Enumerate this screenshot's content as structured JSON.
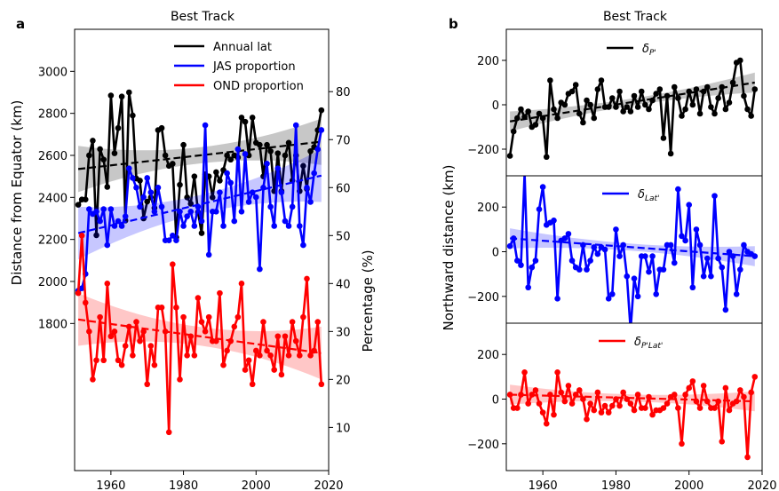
{
  "panel_a": {
    "letter": "a",
    "title": "Best Track",
    "ylabel_left": "Distance from Equator (km)",
    "ylabel_right": "Percentage (%)",
    "left_ticks": [
      "1800",
      "2000",
      "2200",
      "2400",
      "2600",
      "2800",
      "3000"
    ],
    "right_ticks": [
      "10",
      "20",
      "30",
      "40",
      "50",
      "60",
      "70",
      "80"
    ],
    "x_ticks": [
      "1960",
      "1980",
      "2000",
      "2020"
    ]
  },
  "panel_b": {
    "letter": "b",
    "title": "Best Track",
    "ylabel": "Northward distance (km)",
    "x_ticks": [
      "1960",
      "1980",
      "2000",
      "2020"
    ],
    "sub_labels": [
      "δP'",
      "δLat'",
      "δP'Lat'"
    ],
    "sub_labels_html": [
      {
        "base": "δ",
        "sub": "P'"
      },
      {
        "base": "δ",
        "sub": "Lat'"
      },
      {
        "base": "δ",
        "sub": "P'Lat'"
      }
    ]
  },
  "chart_data": [
    {
      "type": "line",
      "title": "Best Track",
      "xlabel": "",
      "ylabel": "Distance from Equator (km)",
      "ylabel_right": "Percentage (%)",
      "xlim": [
        1950,
        2020
      ],
      "ylim": [
        1100,
        3200
      ],
      "ylim_right": [
        1,
        93
      ],
      "legend_position": "top-right",
      "x": [
        1951,
        1952,
        1953,
        1954,
        1955,
        1956,
        1957,
        1958,
        1959,
        1960,
        1961,
        1962,
        1963,
        1964,
        1965,
        1966,
        1967,
        1968,
        1969,
        1970,
        1971,
        1972,
        1973,
        1974,
        1975,
        1976,
        1977,
        1978,
        1979,
        1980,
        1981,
        1982,
        1983,
        1984,
        1985,
        1986,
        1987,
        1988,
        1989,
        1990,
        1991,
        1992,
        1993,
        1994,
        1995,
        1996,
        1997,
        1998,
        1999,
        2000,
        2001,
        2002,
        2003,
        2004,
        2005,
        2006,
        2007,
        2008,
        2009,
        2010,
        2011,
        2012,
        2013,
        2014,
        2015,
        2016,
        2017,
        2018
      ],
      "series": [
        {
          "name": "Annual lat",
          "axis": "left",
          "color": "#000000",
          "trend": [
            2535,
            2665
          ],
          "values": [
            2365,
            2390,
            2390,
            2600,
            2670,
            2220,
            2630,
            2580,
            2450,
            2885,
            2610,
            2730,
            2880,
            2290,
            2900,
            2790,
            2490,
            2480,
            2300,
            2380,
            2400,
            2350,
            2720,
            2730,
            2600,
            2550,
            2560,
            2210,
            2460,
            2650,
            2400,
            2370,
            2500,
            2330,
            2230,
            2510,
            2500,
            2400,
            2520,
            2480,
            2530,
            2600,
            2580,
            2600,
            2590,
            2780,
            2760,
            2600,
            2780,
            2660,
            2650,
            2500,
            2650,
            2620,
            2430,
            2610,
            2430,
            2600,
            2660,
            2480,
            2600,
            2430,
            2550,
            2440,
            2620,
            2640,
            2720,
            2815
          ]
        },
        {
          "name": "JAS proportion",
          "axis": "right",
          "color": "#0000ff",
          "trend": [
            50.5,
            62.5
          ],
          "values": [
            38.5,
            39,
            42,
            55.5,
            54.5,
            55,
            53,
            55.5,
            48,
            55.5,
            52,
            53,
            52,
            54,
            64,
            62,
            60,
            56,
            58,
            62,
            59,
            55,
            60,
            56,
            49,
            49,
            50,
            49,
            55,
            52,
            54,
            55,
            52,
            56,
            53,
            73,
            46,
            55,
            55,
            59,
            52,
            63,
            61,
            53,
            68,
            55,
            67,
            57,
            59,
            58,
            43,
            60,
            65,
            56,
            52,
            64,
            59,
            53,
            52,
            56,
            73,
            52,
            48,
            60,
            57,
            63,
            68,
            72
          ]
        },
        {
          "name": "OND proportion",
          "axis": "right",
          "color": "#ff0000",
          "trend": [
            32.5,
            25.5
          ],
          "values": [
            38,
            50,
            36,
            30,
            20,
            24,
            33,
            24,
            40,
            29,
            30,
            24,
            23,
            27,
            31,
            25,
            32,
            28,
            30,
            19,
            27,
            23,
            35,
            35,
            30,
            9,
            44,
            35,
            20,
            33,
            25,
            29,
            25,
            37,
            32,
            30,
            33,
            28,
            28,
            38,
            23,
            26,
            28,
            31,
            33,
            40,
            22,
            24,
            19,
            26,
            25,
            32,
            26,
            25,
            22,
            29,
            21,
            29,
            25,
            32,
            28,
            25,
            33,
            41,
            25,
            26,
            32,
            19
          ]
        }
      ]
    },
    {
      "type": "line",
      "xlim": [
        1950,
        2020
      ],
      "ylim": [
        -320,
        340
      ],
      "legend_position": "top-center",
      "x": [
        1951,
        1952,
        1953,
        1954,
        1955,
        1956,
        1957,
        1958,
        1959,
        1960,
        1961,
        1962,
        1963,
        1964,
        1965,
        1966,
        1967,
        1968,
        1969,
        1970,
        1971,
        1972,
        1973,
        1974,
        1975,
        1976,
        1977,
        1978,
        1979,
        1980,
        1981,
        1982,
        1983,
        1984,
        1985,
        1986,
        1987,
        1988,
        1989,
        1990,
        1991,
        1992,
        1993,
        1994,
        1995,
        1996,
        1997,
        1998,
        1999,
        2000,
        2001,
        2002,
        2003,
        2004,
        2005,
        2006,
        2007,
        2008,
        2009,
        2010,
        2011,
        2012,
        2013,
        2014,
        2015,
        2016,
        2017,
        2018
      ],
      "series": [
        {
          "name": "δP'",
          "color": "#000000",
          "trend": [
            -75,
            100
          ],
          "values": [
            -230,
            -120,
            -60,
            -20,
            -55,
            -30,
            -100,
            -90,
            -40,
            -60,
            -235,
            110,
            -20,
            -60,
            10,
            0,
            50,
            60,
            90,
            -40,
            -80,
            20,
            0,
            -60,
            70,
            110,
            -10,
            -10,
            30,
            -10,
            60,
            -30,
            -10,
            -30,
            40,
            -10,
            60,
            0,
            -20,
            20,
            50,
            70,
            -150,
            40,
            -220,
            80,
            30,
            -50,
            -20,
            60,
            0,
            70,
            -40,
            60,
            80,
            -10,
            -40,
            30,
            80,
            -20,
            10,
            100,
            190,
            200,
            40,
            -20,
            -50,
            70
          ]
        },
        {
          "name": "δLat'",
          "color": "#0000ff",
          "trend": [
            60,
            -20
          ],
          "values": [
            25,
            60,
            -40,
            -60,
            350,
            -160,
            -70,
            -40,
            190,
            290,
            120,
            130,
            140,
            -210,
            50,
            60,
            80,
            -40,
            -70,
            -80,
            30,
            -80,
            -40,
            20,
            -10,
            20,
            10,
            -210,
            -190,
            100,
            -20,
            30,
            -110,
            -350,
            -120,
            -200,
            -20,
            -20,
            -90,
            -20,
            -190,
            -80,
            -80,
            30,
            30,
            -50,
            280,
            70,
            50,
            210,
            -160,
            100,
            30,
            -110,
            -30,
            -110,
            250,
            -30,
            -70,
            -260,
            0,
            -20,
            -190,
            -80,
            30,
            0,
            -10,
            -20
          ]
        },
        {
          "name": "δP'Lat'",
          "color": "#ff0000",
          "trend": [
            20,
            -10
          ],
          "values": [
            20,
            -40,
            -40,
            20,
            120,
            -20,
            20,
            40,
            -20,
            -60,
            -110,
            20,
            -70,
            120,
            30,
            -10,
            60,
            -20,
            20,
            40,
            0,
            -90,
            -20,
            -50,
            30,
            -60,
            -30,
            -60,
            -30,
            0,
            -30,
            30,
            0,
            -20,
            -50,
            20,
            -40,
            -40,
            10,
            -70,
            -50,
            -50,
            -40,
            -20,
            10,
            20,
            -40,
            -200,
            20,
            50,
            80,
            -10,
            -40,
            60,
            -10,
            -40,
            -40,
            -10,
            -190,
            50,
            -50,
            -20,
            -10,
            40,
            10,
            -260,
            30,
            100
          ]
        }
      ]
    }
  ]
}
